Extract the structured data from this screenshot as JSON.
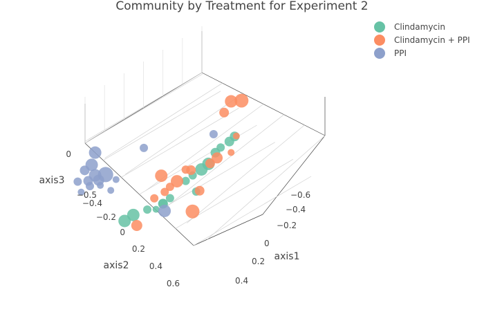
{
  "chart_data": {
    "type": "scatter",
    "title": "Community by Treatment for Experiment 2",
    "axes": {
      "axis1": {
        "label": "axis1",
        "ticks": [
          "−0.6",
          "−0.4",
          "−0.2",
          "0",
          "0.2",
          "0.4"
        ]
      },
      "axis2": {
        "label": "axis2",
        "ticks": [
          "−0.4",
          "−0.2",
          "0",
          "0.2",
          "0.4",
          "0.6"
        ]
      },
      "axis3": {
        "label": "axis3",
        "ticks": [
          "0",
          "−0.5"
        ]
      }
    },
    "legend_position": "top-right",
    "series": [
      {
        "name": "Clindamycin",
        "color": "#66c2a5",
        "points": [
          {
            "axis1": -0.4,
            "axis2": -0.3,
            "axis3": 0.3,
            "size": 7
          },
          {
            "axis1": -0.35,
            "axis2": -0.2,
            "axis3": 0.25,
            "size": 7
          },
          {
            "axis1": -0.3,
            "axis2": -0.2,
            "axis3": 0.2,
            "size": 6
          },
          {
            "axis1": -0.25,
            "axis2": -0.1,
            "axis3": 0.15,
            "size": 7
          },
          {
            "axis1": -0.2,
            "axis2": -0.05,
            "axis3": 0.05,
            "size": 9
          },
          {
            "axis1": -0.15,
            "axis2": 0.0,
            "axis3": 0.0,
            "size": 9
          },
          {
            "axis1": -0.1,
            "axis2": 0.0,
            "axis3": -0.05,
            "size": 6
          },
          {
            "axis1": -0.05,
            "axis2": 0.05,
            "axis3": -0.1,
            "size": 6
          },
          {
            "axis1": -0.1,
            "axis2": 0.1,
            "axis3": -0.2,
            "size": 6
          },
          {
            "axis1": 0.05,
            "axis2": 0.1,
            "axis3": -0.25,
            "size": 6
          },
          {
            "axis1": 0.1,
            "axis2": 0.15,
            "axis3": -0.3,
            "size": 7
          },
          {
            "axis1": 0.1,
            "axis2": 0.15,
            "axis3": -0.3,
            "size": 7
          },
          {
            "axis1": 0.15,
            "axis2": 0.2,
            "axis3": -0.35,
            "size": 5
          },
          {
            "axis1": 0.2,
            "axis2": 0.2,
            "axis3": -0.35,
            "size": 6
          },
          {
            "axis1": 0.3,
            "axis2": 0.3,
            "axis3": -0.4,
            "size": 9
          },
          {
            "axis1": 0.35,
            "axis2": 0.3,
            "axis3": -0.45,
            "size": 9
          }
        ]
      },
      {
        "name": "Clindamycin + PPI",
        "color": "#fc8d62",
        "points": [
          {
            "axis1": -0.4,
            "axis2": -0.25,
            "axis3": 0.3,
            "size": 5
          },
          {
            "axis1": -0.35,
            "axis2": -0.15,
            "axis3": 0.15,
            "size": 5
          },
          {
            "axis1": -0.25,
            "axis2": -0.05,
            "axis3": 0.1,
            "size": 8
          },
          {
            "axis1": -0.2,
            "axis2": 0.0,
            "axis3": 0.05,
            "size": 7
          },
          {
            "axis1": -0.1,
            "axis2": -0.05,
            "axis3": 0.0,
            "size": 7
          },
          {
            "axis1": -0.05,
            "axis2": 0.05,
            "axis3": 0.0,
            "size": 6
          },
          {
            "axis1": 0.0,
            "axis2": 0.05,
            "axis3": -0.1,
            "size": 9
          },
          {
            "axis1": 0.05,
            "axis2": 0.1,
            "axis3": -0.15,
            "size": 6
          },
          {
            "axis1": 0.15,
            "axis2": 0.15,
            "axis3": -0.25,
            "size": 6
          },
          {
            "axis1": 0.1,
            "axis2": 0.2,
            "axis3": -0.2,
            "size": 6
          },
          {
            "axis1": 0.1,
            "axis2": 0.1,
            "axis3": -0.05,
            "size": 9
          },
          {
            "axis1": -0.1,
            "axis2": 0.2,
            "axis3": -0.2,
            "size": 7
          },
          {
            "axis1": 0.0,
            "axis2": 0.5,
            "axis3": -0.4,
            "size": 10
          },
          {
            "axis1": -0.4,
            "axis2": -0.1,
            "axis3": 0.6,
            "size": 10
          },
          {
            "axis1": -0.35,
            "axis2": -0.15,
            "axis3": 0.6,
            "size": 9
          },
          {
            "axis1": -0.3,
            "axis2": -0.1,
            "axis3": 0.5,
            "size": 7
          },
          {
            "axis1": 0.3,
            "axis2": 0.4,
            "axis3": -0.5,
            "size": 8
          }
        ]
      },
      {
        "name": "PPI",
        "color": "#8da0cb",
        "points": [
          {
            "axis1": -0.2,
            "axis2": 0.1,
            "axis3": 0.3,
            "size": 6
          },
          {
            "axis1": 0.4,
            "axis2": -0.3,
            "axis3": 0.2,
            "size": 9
          },
          {
            "axis1": 0.4,
            "axis2": -0.4,
            "axis3": 0.1,
            "size": 9
          },
          {
            "axis1": 0.45,
            "axis2": -0.35,
            "axis3": 0.05,
            "size": 7
          },
          {
            "axis1": 0.4,
            "axis2": -0.3,
            "axis3": 0.0,
            "size": 9
          },
          {
            "axis1": 0.35,
            "axis2": -0.25,
            "axis3": 0.0,
            "size": 11
          },
          {
            "axis1": 0.4,
            "axis2": -0.2,
            "axis3": -0.05,
            "size": 8
          },
          {
            "axis1": 0.45,
            "axis2": -0.25,
            "axis3": -0.05,
            "size": 7
          },
          {
            "axis1": 0.5,
            "axis2": -0.3,
            "axis3": -0.05,
            "size": 6
          },
          {
            "axis1": 0.45,
            "axis2": -0.2,
            "axis3": -0.1,
            "size": 6
          },
          {
            "axis1": 0.4,
            "axis2": -0.15,
            "axis3": -0.1,
            "size": 5
          },
          {
            "axis1": 0.3,
            "axis2": -0.2,
            "axis3": -0.05,
            "size": 5
          },
          {
            "axis1": 0.5,
            "axis2": -0.2,
            "axis3": -0.15,
            "size": 5
          },
          {
            "axis1": 0.35,
            "axis2": -0.1,
            "axis3": -0.15,
            "size": 5
          },
          {
            "axis1": 0.2,
            "axis2": 0.1,
            "axis3": 0.2,
            "size": 6
          },
          {
            "axis1": 0.2,
            "axis2": 0.7,
            "axis3": -0.4,
            "size": 9
          }
        ]
      }
    ]
  }
}
